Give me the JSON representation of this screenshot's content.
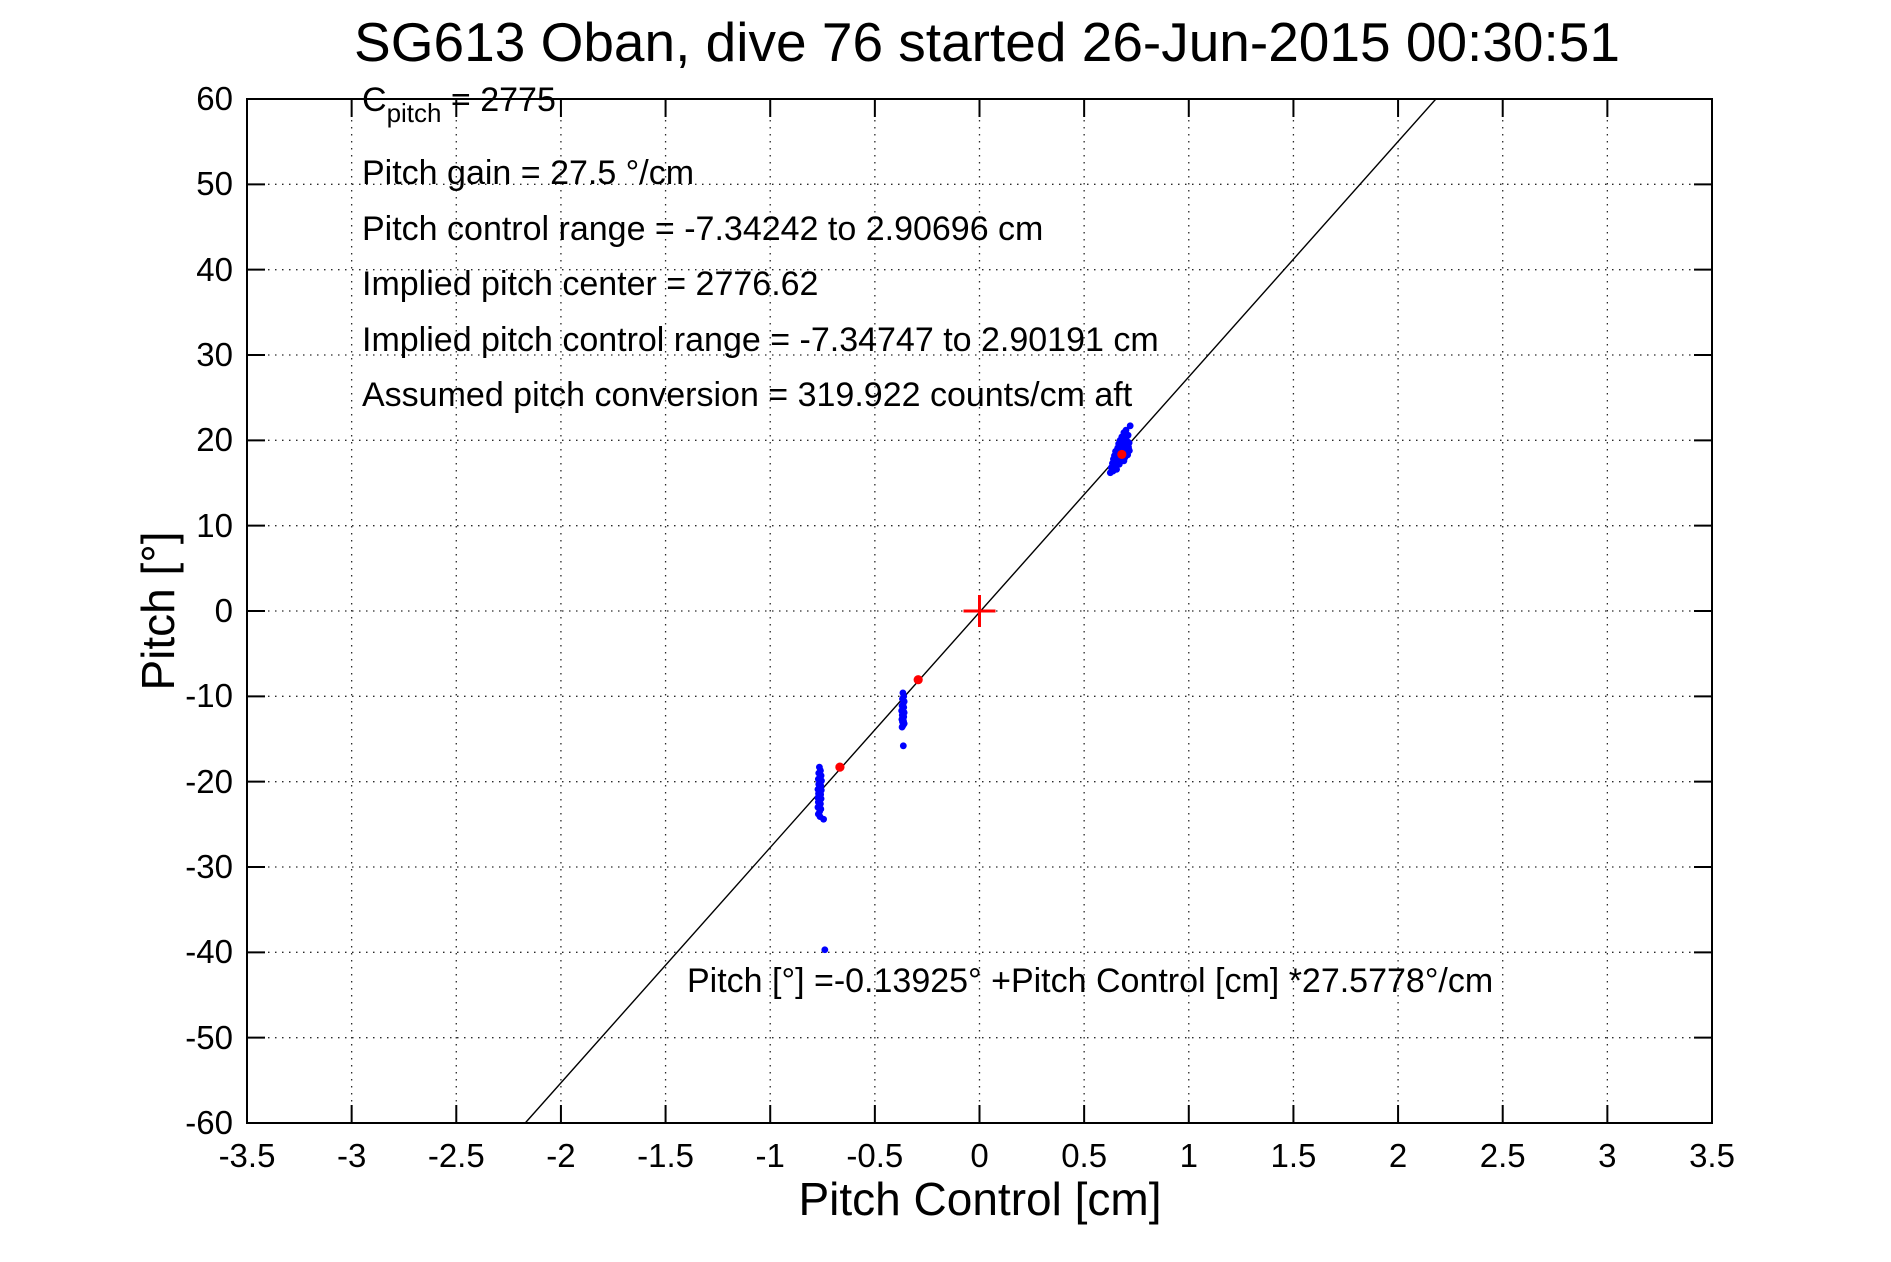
{
  "figure": {
    "kind": "matlab-style plot window",
    "background": "#ffffff"
  },
  "chart_data": {
    "type": "scatter",
    "title": "SG613 Oban, dive 76 started 26-Jun-2015 00:30:51",
    "xlabel": "Pitch Control [cm]",
    "ylabel": "Pitch [°]",
    "xlim": [
      -3.5,
      3.5
    ],
    "ylim": [
      -60,
      60
    ],
    "x_ticks": [
      "-3.5",
      "-3",
      "-2.5",
      "-2",
      "-1.5",
      "-1",
      "-0.5",
      "0",
      "0.5",
      "1",
      "1.5",
      "2",
      "2.5",
      "3",
      "3.5"
    ],
    "y_ticks": [
      "-60",
      "-50",
      "-40",
      "-30",
      "-20",
      "-10",
      "0",
      "10",
      "20",
      "30",
      "40",
      "50",
      "60"
    ],
    "grid": true,
    "grid_style": "dotted",
    "legend": "none",
    "colors": {
      "data_points": "#0000ff",
      "reference_points": "#ff0000",
      "fit_line": "#000000",
      "grid": "#2a2a2a",
      "axes": "#000000"
    },
    "annotations": {
      "c_pitch": {
        "base": "C",
        "sub": "pitch",
        "rest": " = 2775"
      },
      "stats_lines": [
        "Pitch gain = 27.5 °/cm",
        "Pitch control range = -7.34242 to 2.90696 cm",
        "Implied pitch center = 2776.62",
        "Implied pitch control range = -7.34747 to 2.90191 cm",
        "Assumed pitch conversion = 319.922 counts/cm aft"
      ],
      "fit_equation": "Pitch [°] =-0.13925° +Pitch Control [cm] *27.5778°/cm"
    },
    "fit_line": {
      "slope_deg_per_cm": 27.5778,
      "intercept_deg": -0.13925
    },
    "series": [
      {
        "name": "observed-pitch-vs-control",
        "marker": "dot",
        "color": "#0000ff",
        "size": 3.4,
        "points": [
          [
            -0.765,
            -18.3
          ],
          [
            -0.76,
            -18.7
          ],
          [
            -0.768,
            -19.0
          ],
          [
            -0.757,
            -19.3
          ],
          [
            -0.763,
            -19.5
          ],
          [
            -0.77,
            -19.7
          ],
          [
            -0.755,
            -19.9
          ],
          [
            -0.762,
            -20.1
          ],
          [
            -0.768,
            -20.3
          ],
          [
            -0.758,
            -20.5
          ],
          [
            -0.765,
            -20.7
          ],
          [
            -0.772,
            -20.9
          ],
          [
            -0.756,
            -21.0
          ],
          [
            -0.763,
            -21.2
          ],
          [
            -0.769,
            -21.4
          ],
          [
            -0.759,
            -21.5
          ],
          [
            -0.766,
            -21.7
          ],
          [
            -0.772,
            -21.9
          ],
          [
            -0.757,
            -22.0
          ],
          [
            -0.764,
            -22.2
          ],
          [
            -0.77,
            -22.4
          ],
          [
            -0.76,
            -22.6
          ],
          [
            -0.766,
            -22.8
          ],
          [
            -0.772,
            -23.0
          ],
          [
            -0.758,
            -23.2
          ],
          [
            -0.764,
            -23.5
          ],
          [
            -0.77,
            -23.8
          ],
          [
            -0.762,
            -24.1
          ],
          [
            -0.745,
            -24.4
          ],
          [
            -0.366,
            -9.6
          ],
          [
            -0.362,
            -10.0
          ],
          [
            -0.368,
            -10.3
          ],
          [
            -0.36,
            -10.6
          ],
          [
            -0.365,
            -10.9
          ],
          [
            -0.37,
            -11.1
          ],
          [
            -0.362,
            -11.3
          ],
          [
            -0.367,
            -11.5
          ],
          [
            -0.372,
            -11.7
          ],
          [
            -0.36,
            -11.9
          ],
          [
            -0.365,
            -12.0
          ],
          [
            -0.369,
            -12.2
          ],
          [
            -0.362,
            -12.4
          ],
          [
            -0.367,
            -12.5
          ],
          [
            -0.371,
            -12.7
          ],
          [
            -0.363,
            -12.9
          ],
          [
            -0.368,
            -13.0
          ],
          [
            -0.36,
            -13.2
          ],
          [
            -0.365,
            -13.4
          ],
          [
            -0.37,
            -13.6
          ],
          [
            -0.364,
            -15.8
          ],
          [
            0.72,
            21.7
          ],
          [
            0.7,
            21.2
          ],
          [
            0.69,
            20.9
          ],
          [
            0.71,
            20.6
          ],
          [
            0.68,
            20.4
          ],
          [
            0.695,
            20.2
          ],
          [
            0.672,
            20.0
          ],
          [
            0.705,
            19.9
          ],
          [
            0.685,
            19.8
          ],
          [
            0.715,
            19.7
          ],
          [
            0.665,
            19.6
          ],
          [
            0.69,
            19.5
          ],
          [
            0.7,
            19.4
          ],
          [
            0.678,
            19.3
          ],
          [
            0.712,
            19.2
          ],
          [
            0.66,
            19.1
          ],
          [
            0.688,
            19.0
          ],
          [
            0.702,
            18.9
          ],
          [
            0.67,
            18.8
          ],
          [
            0.716,
            18.8
          ],
          [
            0.65,
            18.7
          ],
          [
            0.684,
            18.6
          ],
          [
            0.698,
            18.5
          ],
          [
            0.664,
            18.4
          ],
          [
            0.708,
            18.3
          ],
          [
            0.645,
            18.2
          ],
          [
            0.68,
            18.1
          ],
          [
            0.695,
            18.0
          ],
          [
            0.658,
            17.9
          ],
          [
            0.64,
            17.8
          ],
          [
            0.674,
            17.7
          ],
          [
            0.69,
            17.6
          ],
          [
            0.652,
            17.5
          ],
          [
            0.635,
            17.3
          ],
          [
            0.668,
            17.2
          ],
          [
            0.646,
            17.0
          ],
          [
            0.63,
            16.8
          ],
          [
            0.655,
            16.6
          ],
          [
            0.638,
            16.4
          ],
          [
            0.625,
            16.2
          ],
          [
            -0.739,
            -39.7
          ]
        ]
      },
      {
        "name": "implied-control-centers",
        "marker": "dot",
        "color": "#ff0000",
        "size": 4.6,
        "points": [
          [
            -0.667,
            -18.3
          ],
          [
            -0.293,
            -8.05
          ],
          [
            0.68,
            18.35
          ]
        ]
      },
      {
        "name": "origin-reference",
        "marker": "plus",
        "color": "#ff0000",
        "size": 16,
        "points": [
          [
            0,
            0
          ]
        ]
      }
    ]
  }
}
